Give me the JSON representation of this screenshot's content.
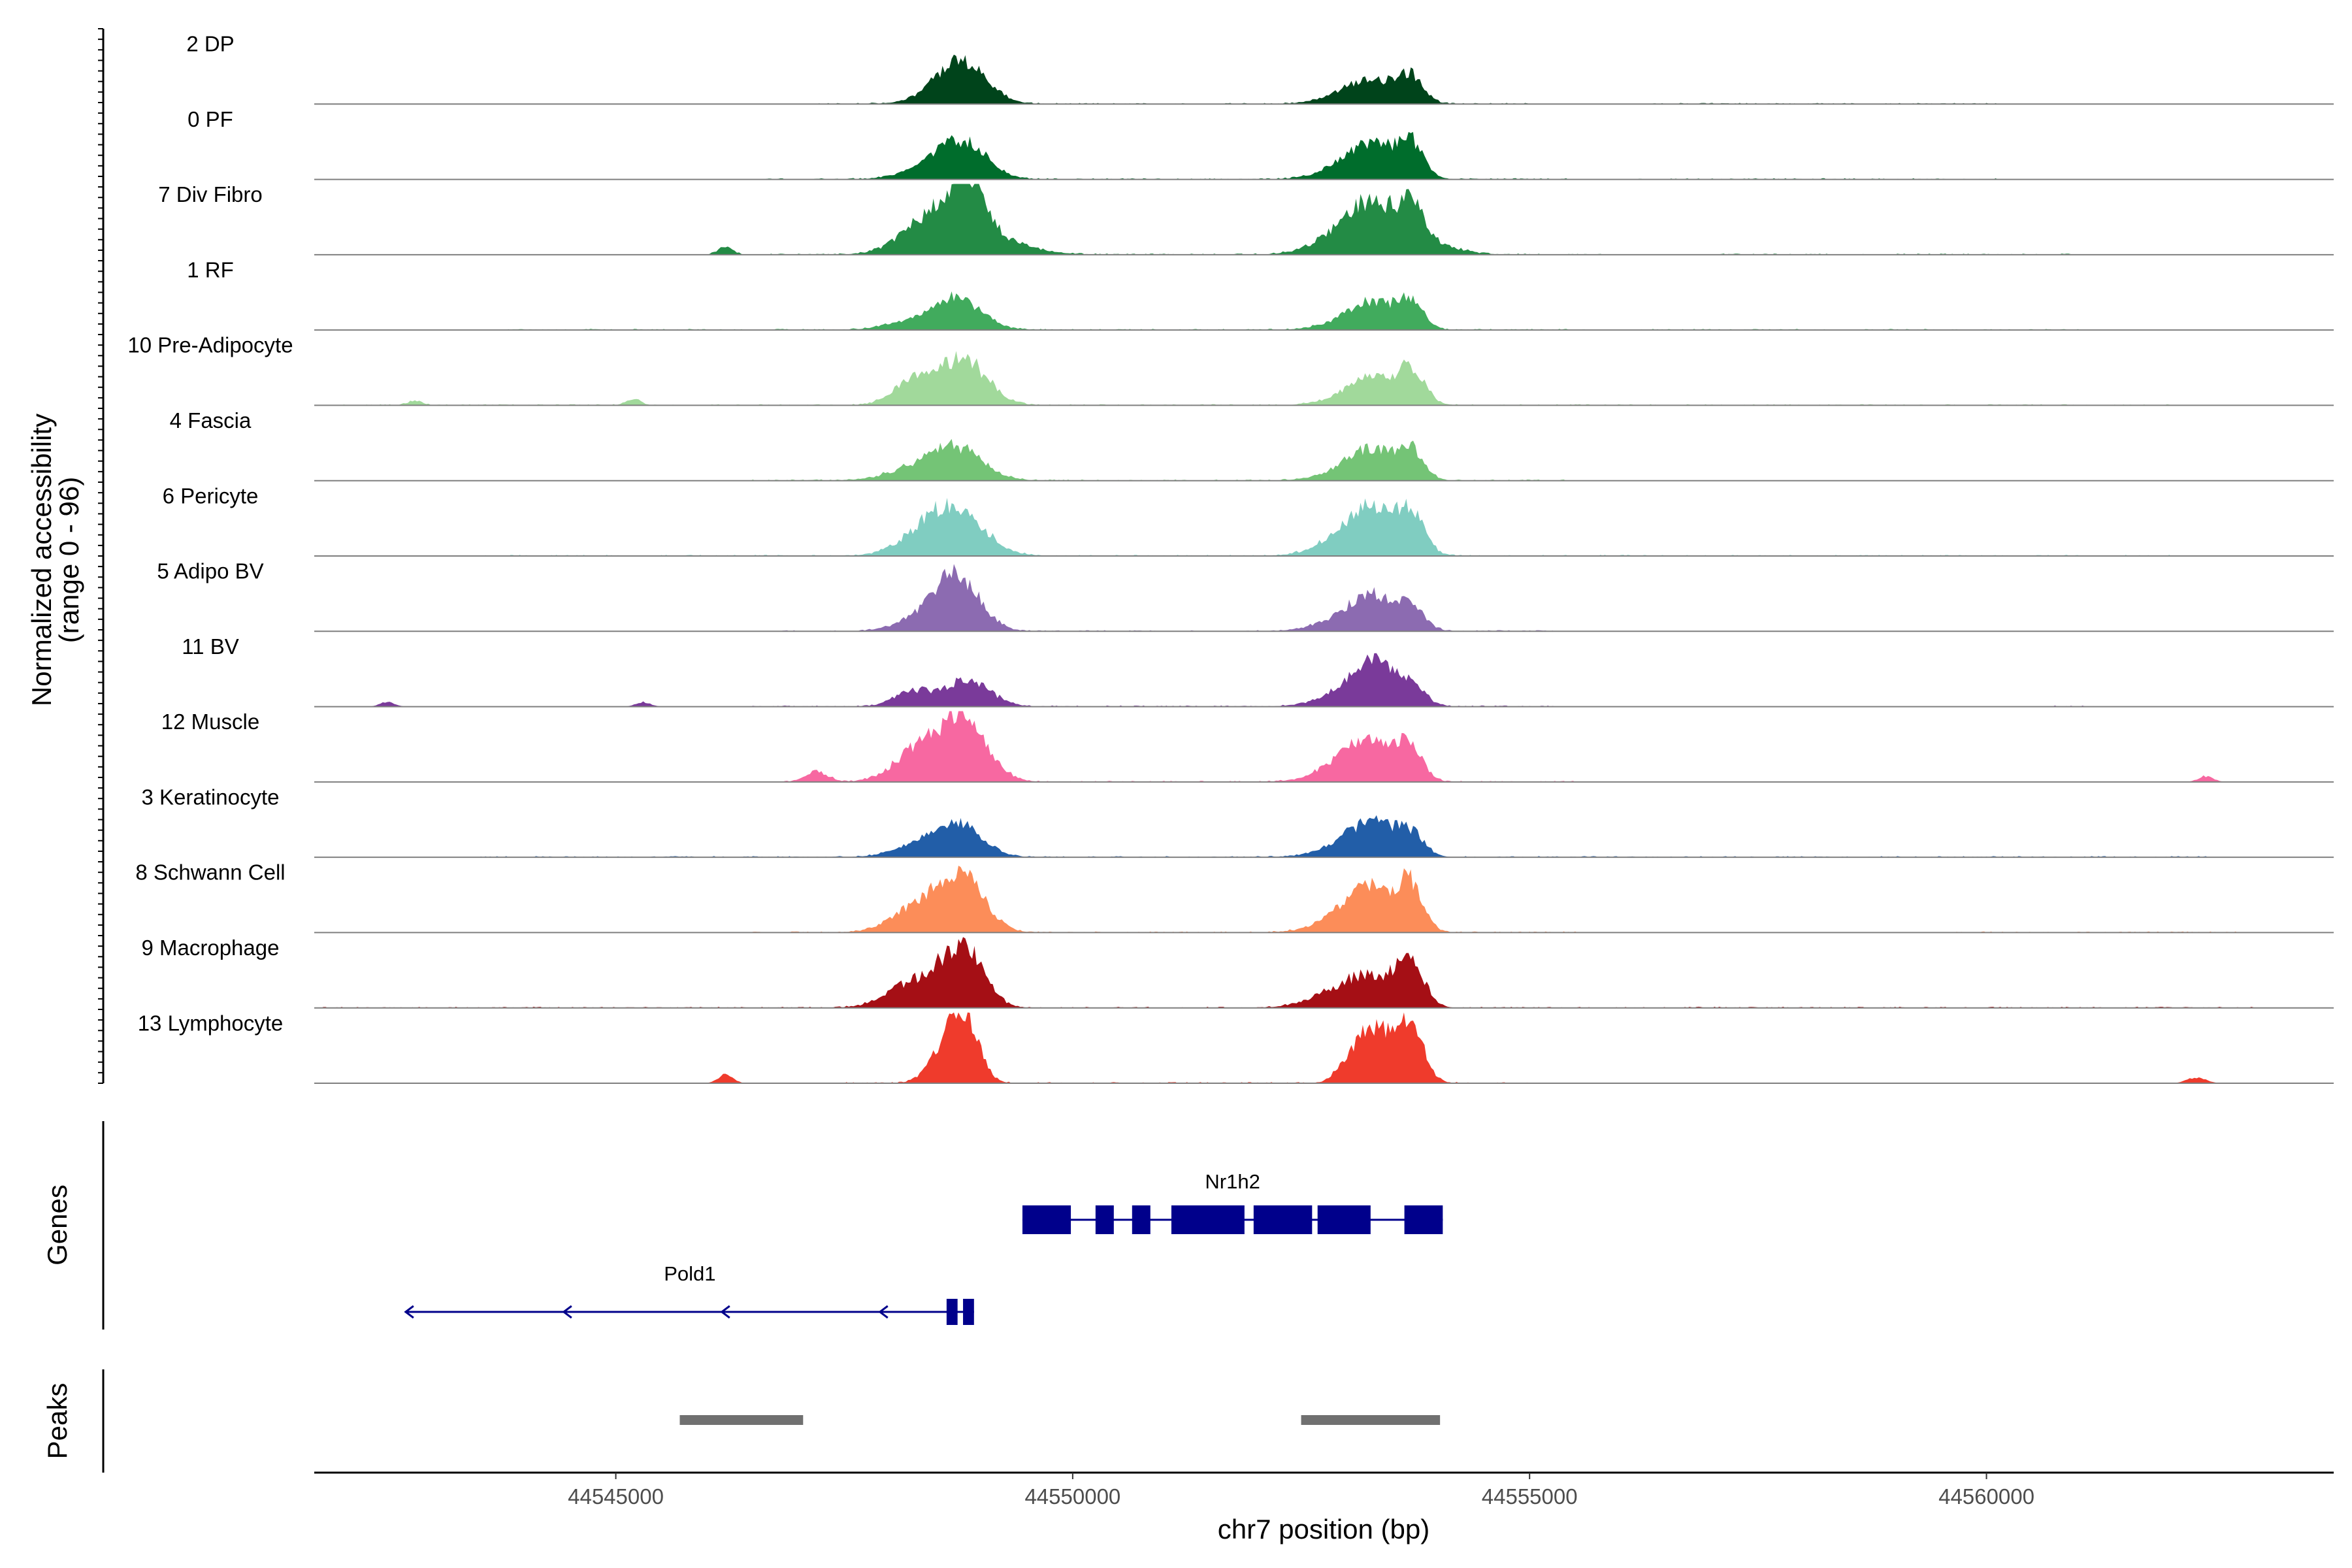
{
  "chart_data": {
    "type": "area",
    "title": "",
    "ylabel_line1": "Normalized accessibility",
    "ylabel_line2": "(range 0 - 96)",
    "xlabel": "chr7 position (bp)",
    "genes_label": "Genes",
    "peaks_label": "Peaks",
    "xlim": [
      44541700,
      44563800
    ],
    "ylim": [
      0,
      96
    ],
    "x_ticks": [
      {
        "value": 44545000,
        "label": "44545000"
      },
      {
        "value": 44550000,
        "label": "44550000"
      },
      {
        "value": 44555000,
        "label": "44555000"
      },
      {
        "value": 44560000,
        "label": "44560000"
      }
    ],
    "tracks": [
      {
        "name": "2 DP",
        "color": "#00441b",
        "peaks": [
          [
            44548800,
            48,
            260
          ],
          [
            44548600,
            12,
            300
          ],
          [
            44553300,
            24,
            250
          ],
          [
            44553050,
            12,
            300
          ],
          [
            44553700,
            34,
            140
          ]
        ],
        "noise": [
          [
            44547200,
            44555300
          ],
          [
            44556200,
            44560100
          ]
        ]
      },
      {
        "name": "0 PF",
        "color": "#006d2c",
        "peaks": [
          [
            44548800,
            46,
            260
          ],
          [
            44548450,
            14,
            300
          ],
          [
            44553300,
            36,
            250
          ],
          [
            44553050,
            18,
            300
          ],
          [
            44553700,
            44,
            140
          ]
        ],
        "noise": [
          [
            44546500,
            44555400
          ],
          [
            44556200,
            44560100
          ]
        ]
      },
      {
        "name": "7 Div Fibro",
        "color": "#238b45",
        "peaks": [
          [
            44548850,
            72,
            170
          ],
          [
            44548450,
            40,
            300
          ],
          [
            44548900,
            30,
            450
          ],
          [
            44553300,
            50,
            230
          ],
          [
            44553000,
            30,
            320
          ],
          [
            44553700,
            52,
            140
          ],
          [
            44553900,
            14,
            300
          ],
          [
            44546200,
            10,
            80
          ]
        ],
        "noise": [
          [
            44546000,
            44555800
          ],
          [
            44557000,
            44561000
          ]
        ]
      },
      {
        "name": "1 RF",
        "color": "#41ab5d",
        "peaks": [
          [
            44548750,
            40,
            260
          ],
          [
            44548300,
            12,
            300
          ],
          [
            44553300,
            30,
            230
          ],
          [
            44553050,
            12,
            300
          ],
          [
            44553700,
            36,
            140
          ]
        ],
        "noise": [
          [
            44543800,
            44555700
          ],
          [
            44556200,
            44561000
          ]
        ]
      },
      {
        "name": "10 Pre-Adipocyte",
        "color": "#a1d99b",
        "peaks": [
          [
            44548800,
            62,
            260
          ],
          [
            44548250,
            32,
            220
          ],
          [
            44553300,
            28,
            230
          ],
          [
            44553050,
            12,
            280
          ],
          [
            44553700,
            46,
            150
          ],
          [
            44545200,
            8,
            80
          ],
          [
            44542800,
            6,
            80
          ]
        ],
        "noise": [
          [
            44541800,
            44562000
          ]
        ]
      },
      {
        "name": "4 Fascia",
        "color": "#74c476",
        "peaks": [
          [
            44548750,
            40,
            280
          ],
          [
            44548300,
            16,
            320
          ],
          [
            44553300,
            32,
            250
          ],
          [
            44553050,
            14,
            300
          ],
          [
            44553700,
            38,
            140
          ]
        ],
        "noise": [
          [
            44546500,
            44555500
          ]
        ]
      },
      {
        "name": "6 Pericyte",
        "color": "#80cdc1",
        "peaks": [
          [
            44548750,
            54,
            300
          ],
          [
            44548400,
            26,
            300
          ],
          [
            44553300,
            50,
            250
          ],
          [
            44553000,
            24,
            300
          ],
          [
            44553700,
            52,
            150
          ]
        ],
        "noise": [
          [
            44543500,
            44562000
          ]
        ]
      },
      {
        "name": "5 Adipo BV",
        "color": "#8c6bb1",
        "peaks": [
          [
            44548750,
            66,
            240
          ],
          [
            44548400,
            20,
            280
          ],
          [
            44553300,
            40,
            220
          ],
          [
            44553000,
            18,
            300
          ],
          [
            44553700,
            30,
            150
          ]
        ],
        "noise": [
          [
            44546800,
            44555300
          ]
        ]
      },
      {
        "name": "11 BV",
        "color": "#7a3a9a",
        "peaks": [
          [
            44548850,
            36,
            240
          ],
          [
            44548250,
            20,
            200
          ],
          [
            44553300,
            50,
            220
          ],
          [
            44553000,
            18,
            300
          ],
          [
            44553700,
            28,
            150
          ],
          [
            44545300,
            6,
            80
          ],
          [
            44542500,
            6,
            80
          ]
        ],
        "noise": [
          [
            44546500,
            44555300
          ],
          [
            44560700,
            44561200
          ]
        ]
      },
      {
        "name": "12 Muscle",
        "color": "#f768a1",
        "peaks": [
          [
            44548800,
            80,
            260
          ],
          [
            44548300,
            40,
            260
          ],
          [
            44553300,
            40,
            260
          ],
          [
            44553000,
            24,
            300
          ],
          [
            44553700,
            44,
            130
          ],
          [
            44547200,
            14,
            120
          ],
          [
            44562400,
            8,
            80
          ]
        ],
        "noise": [
          [
            44546800,
            44555500
          ]
        ]
      },
      {
        "name": "3 Keratinocyte",
        "color": "#225ea8",
        "peaks": [
          [
            44548750,
            42,
            260
          ],
          [
            44548350,
            14,
            300
          ],
          [
            44553300,
            38,
            240
          ],
          [
            44553000,
            16,
            300
          ],
          [
            44553700,
            28,
            150
          ]
        ],
        "noise": [
          [
            44543500,
            44562500
          ]
        ]
      },
      {
        "name": "8 Schwann Cell",
        "color": "#fc8d59",
        "peaks": [
          [
            44548800,
            70,
            240
          ],
          [
            44548350,
            36,
            300
          ],
          [
            44553300,
            50,
            250
          ],
          [
            44553000,
            22,
            300
          ],
          [
            44553700,
            56,
            140
          ]
        ],
        "noise": [
          [
            44546500,
            44555500
          ],
          [
            44559500,
            44562800
          ]
        ]
      },
      {
        "name": "9 Macrophage",
        "color": "#a50f15",
        "peaks": [
          [
            44548800,
            78,
            220
          ],
          [
            44548300,
            36,
            300
          ],
          [
            44553300,
            36,
            240
          ],
          [
            44552900,
            22,
            300
          ],
          [
            44553700,
            58,
            150
          ]
        ],
        "noise": [
          [
            44541800,
            44563000
          ]
        ]
      },
      {
        "name": "13 Lymphocyte",
        "color": "#ef3b2c",
        "peaks": [
          [
            44548800,
            96,
            160
          ],
          [
            44548550,
            30,
            160
          ],
          [
            44553300,
            48,
            140
          ],
          [
            44553050,
            34,
            140
          ],
          [
            44553700,
            72,
            140
          ],
          [
            44553450,
            26,
            200
          ],
          [
            44546200,
            12,
            80
          ],
          [
            44562300,
            8,
            100
          ]
        ],
        "noise": [
          [
            44547500,
            44555200
          ]
        ]
      }
    ],
    "genes": [
      {
        "name": "Nr1h2",
        "strand": "+",
        "start": 44549450,
        "end": 44554050,
        "row": 1,
        "exons": [
          [
            44549450,
            44549980
          ],
          [
            44550250,
            44550450
          ],
          [
            44550650,
            44550850
          ],
          [
            44551080,
            44551880
          ],
          [
            44551980,
            44552620
          ],
          [
            44552680,
            44553260
          ],
          [
            44553630,
            44554050
          ]
        ]
      },
      {
        "name": "Pold1",
        "strand": "-",
        "start": 44542700,
        "end": 44548920,
        "row": 2,
        "exons": [
          [
            44548620,
            44548740
          ],
          [
            44548800,
            44548920
          ]
        ]
      }
    ],
    "peaks": [
      [
        44545700,
        44547050
      ],
      [
        44552500,
        44554020
      ]
    ],
    "colors": {
      "axis": "#000000",
      "baseline": "#7f7f7f",
      "gene": "#00008b",
      "peak": "#707070"
    }
  }
}
